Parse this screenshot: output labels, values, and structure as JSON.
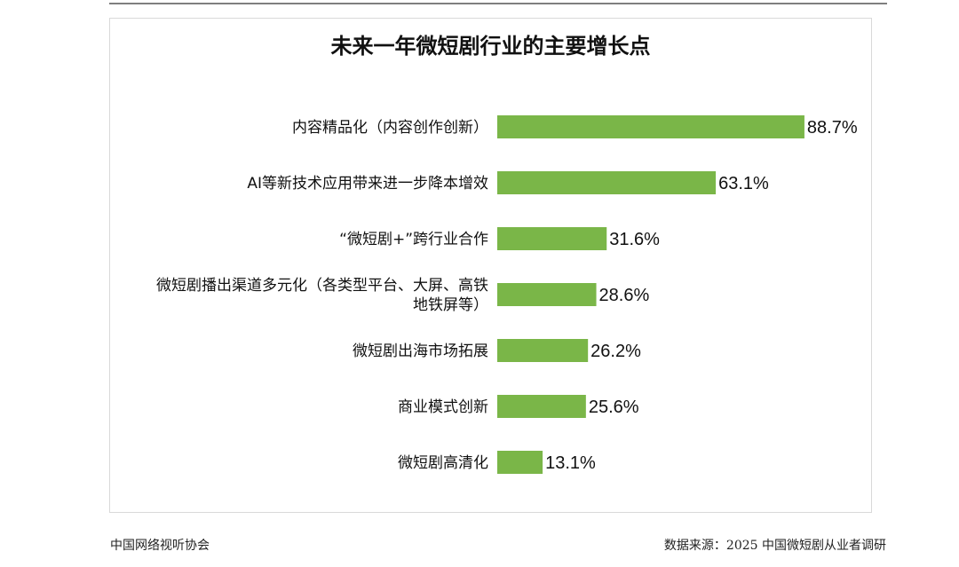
{
  "footer": {
    "left": "中国网络视听协会",
    "right": "数据来源：2025 中国微短剧从业者调研"
  },
  "colors": {
    "bar": "#7ab648",
    "text": "#111111"
  },
  "chart_data": {
    "type": "bar",
    "orientation": "horizontal",
    "title": "未来一年微短剧行业的主要增长点",
    "categories": [
      [
        "内容精品化（内容创作创新）"
      ],
      [
        "AI等新技术应用带来进一步降本增效"
      ],
      [
        "“微短剧+”跨行业合作"
      ],
      [
        "微短剧播出渠道多元化（各类型平台、大屏、高铁",
        "地铁屏等）"
      ],
      [
        "微短剧出海市场拓展"
      ],
      [
        "商业模式创新"
      ],
      [
        "微短剧高清化"
      ]
    ],
    "values": [
      88.7,
      63.1,
      31.6,
      28.6,
      26.2,
      25.6,
      13.1
    ],
    "data_labels": [
      "88.7%",
      "63.1%",
      "31.6%",
      "28.6%",
      "26.2%",
      "25.6%",
      "13.1%"
    ],
    "unit": "%",
    "xlim": [
      0,
      100
    ],
    "grid": false,
    "legend": "none"
  }
}
